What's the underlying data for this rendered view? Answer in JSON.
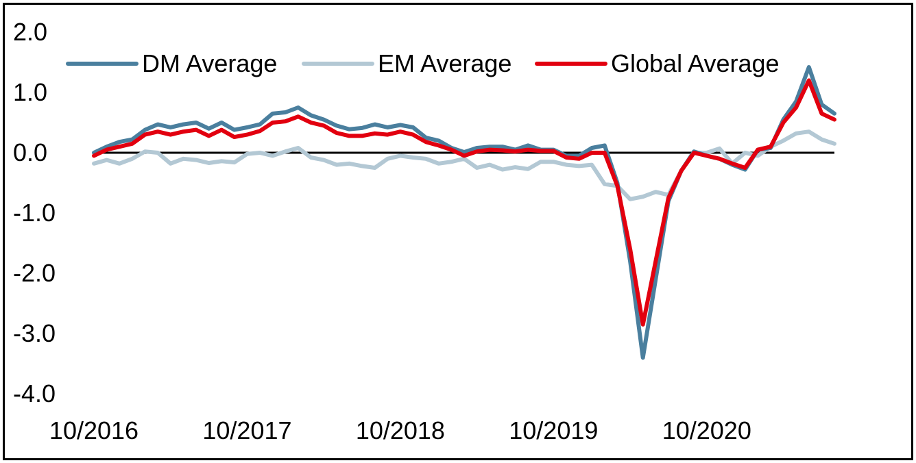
{
  "chart_data": {
    "type": "line",
    "title": "",
    "xlabel": "",
    "ylabel": "",
    "ylim": [
      -4.0,
      2.0
    ],
    "yticks": [
      2.0,
      1.0,
      0.0,
      -1.0,
      -2.0,
      -3.0,
      -4.0
    ],
    "ytick_labels": [
      "2.0",
      "1.0",
      "0.0",
      "-1.0",
      "-2.0",
      "-3.0",
      "-4.0"
    ],
    "xtick_labels": [
      "10/2016",
      "10/2017",
      "10/2018",
      "10/2019",
      "10/2020"
    ],
    "x": [
      "10/2016",
      "11/2016",
      "12/2016",
      "01/2017",
      "02/2017",
      "03/2017",
      "04/2017",
      "05/2017",
      "06/2017",
      "07/2017",
      "08/2017",
      "09/2017",
      "10/2017",
      "11/2017",
      "12/2017",
      "01/2018",
      "02/2018",
      "03/2018",
      "04/2018",
      "05/2018",
      "06/2018",
      "07/2018",
      "08/2018",
      "09/2018",
      "10/2018",
      "11/2018",
      "12/2018",
      "01/2019",
      "02/2019",
      "03/2019",
      "04/2019",
      "05/2019",
      "06/2019",
      "07/2019",
      "08/2019",
      "09/2019",
      "10/2019",
      "11/2019",
      "12/2019",
      "01/2020",
      "02/2020",
      "03/2020",
      "04/2020",
      "05/2020",
      "06/2020",
      "07/2020",
      "08/2020",
      "09/2020",
      "10/2020",
      "11/2020",
      "12/2020",
      "01/2021",
      "02/2021",
      "03/2021",
      "04/2021",
      "05/2021",
      "06/2021",
      "07/2021",
      "08/2021"
    ],
    "grid": false,
    "zero_line": true,
    "legend_position": "top",
    "series": [
      {
        "name": "DM Average",
        "color": "#4a7f9e",
        "values": [
          0.0,
          0.1,
          0.18,
          0.22,
          0.38,
          0.47,
          0.42,
          0.47,
          0.5,
          0.4,
          0.5,
          0.38,
          0.42,
          0.47,
          0.65,
          0.67,
          0.75,
          0.62,
          0.55,
          0.45,
          0.39,
          0.41,
          0.47,
          0.42,
          0.46,
          0.42,
          0.25,
          0.2,
          0.08,
          0.01,
          0.08,
          0.1,
          0.1,
          0.05,
          0.12,
          0.05,
          0.05,
          -0.05,
          -0.05,
          0.08,
          0.12,
          -0.5,
          -1.8,
          -3.4,
          -2.1,
          -0.8,
          -0.3,
          0.02,
          -0.05,
          -0.1,
          -0.2,
          -0.28,
          0.05,
          0.08,
          0.55,
          0.85,
          1.42,
          0.8,
          0.65
        ]
      },
      {
        "name": "EM Average",
        "color": "#b3c8d4",
        "values": [
          -0.18,
          -0.12,
          -0.18,
          -0.1,
          0.02,
          0.0,
          -0.18,
          -0.1,
          -0.12,
          -0.17,
          -0.14,
          -0.16,
          -0.02,
          0.0,
          -0.05,
          0.02,
          0.08,
          -0.08,
          -0.12,
          -0.2,
          -0.18,
          -0.22,
          -0.25,
          -0.1,
          -0.05,
          -0.08,
          -0.1,
          -0.18,
          -0.15,
          -0.1,
          -0.25,
          -0.2,
          -0.28,
          -0.24,
          -0.27,
          -0.15,
          -0.15,
          -0.2,
          -0.22,
          -0.2,
          -0.52,
          -0.55,
          -0.77,
          -0.73,
          -0.65,
          -0.7,
          -0.3,
          0.0,
          0.0,
          0.07,
          -0.18,
          0.0,
          -0.05,
          0.1,
          0.2,
          0.32,
          0.35,
          0.22,
          0.15
        ]
      },
      {
        "name": "Global Average",
        "color": "#e2000f",
        "values": [
          -0.05,
          0.05,
          0.1,
          0.15,
          0.3,
          0.35,
          0.3,
          0.35,
          0.38,
          0.28,
          0.38,
          0.26,
          0.3,
          0.36,
          0.5,
          0.52,
          0.6,
          0.5,
          0.45,
          0.33,
          0.28,
          0.28,
          0.32,
          0.3,
          0.35,
          0.3,
          0.18,
          0.12,
          0.05,
          -0.05,
          0.02,
          0.05,
          0.04,
          0.02,
          0.05,
          0.03,
          0.03,
          -0.08,
          -0.1,
          0.0,
          0.0,
          -0.55,
          -1.6,
          -2.85,
          -1.8,
          -0.75,
          -0.3,
          0.0,
          -0.05,
          -0.1,
          -0.18,
          -0.25,
          0.05,
          0.1,
          0.5,
          0.75,
          1.2,
          0.65,
          0.55
        ]
      }
    ]
  }
}
